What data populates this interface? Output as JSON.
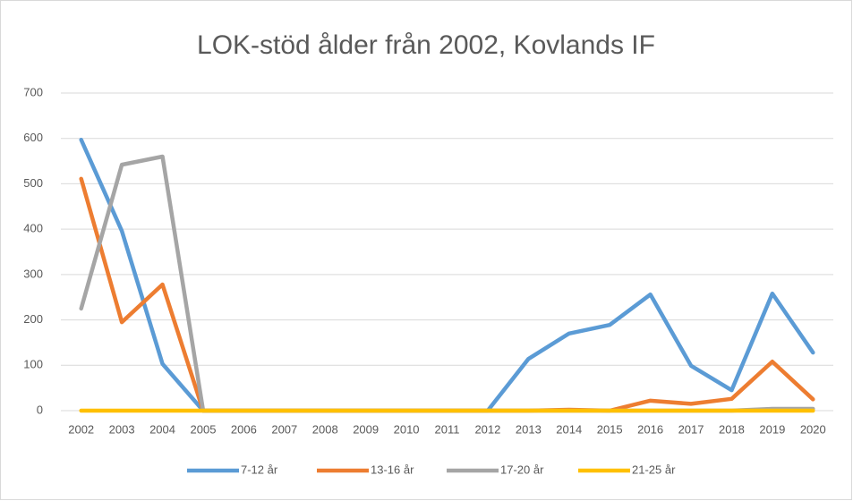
{
  "chart_data": {
    "type": "line",
    "title": "LOK-stöd ålder från 2002, Kovlands IF",
    "categories": [
      "2002",
      "2003",
      "2004",
      "2005",
      "2006",
      "2007",
      "2008",
      "2009",
      "2010",
      "2011",
      "2012",
      "2013",
      "2014",
      "2015",
      "2016",
      "2017",
      "2018",
      "2019",
      "2020"
    ],
    "series": [
      {
        "name": "7-12 år",
        "color": "#5b9bd5",
        "values": [
          597,
          396,
          103,
          0,
          0,
          0,
          0,
          0,
          0,
          0,
          0,
          114,
          170,
          189,
          256,
          99,
          45,
          258,
          128
        ]
      },
      {
        "name": "13-16 år",
        "color": "#ed7d31",
        "values": [
          511,
          195,
          278,
          0,
          0,
          0,
          0,
          0,
          0,
          0,
          0,
          0,
          2,
          0,
          22,
          15,
          26,
          108,
          25
        ]
      },
      {
        "name": "17-20 år",
        "color": "#a5a5a5",
        "values": [
          225,
          542,
          560,
          0,
          0,
          0,
          0,
          0,
          0,
          0,
          0,
          0,
          0,
          0,
          0,
          0,
          0,
          4,
          4
        ]
      },
      {
        "name": "21-25 år",
        "color": "#ffc000",
        "values": [
          0,
          0,
          0,
          0,
          0,
          0,
          0,
          0,
          0,
          0,
          0,
          0,
          0,
          0,
          0,
          0,
          0,
          0,
          0
        ]
      }
    ],
    "ylim": [
      0,
      700
    ],
    "yticks": [
      0,
      100,
      200,
      300,
      400,
      500,
      600,
      700
    ],
    "grid": true,
    "legend": "bottom"
  }
}
